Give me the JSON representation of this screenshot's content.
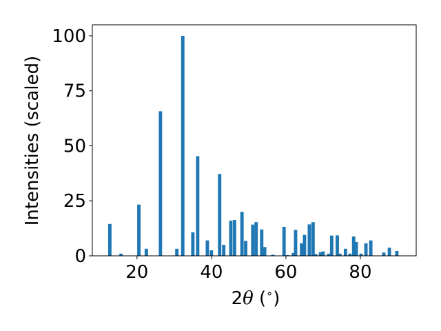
{
  "chart_data": {
    "type": "bar",
    "xlabel_parts": {
      "pre": "2",
      "symbol": "θ",
      "post": " (",
      "degree": "∘",
      "close": ")"
    },
    "ylabel": "Intensities (scaled)",
    "xlim": [
      8,
      95
    ],
    "ylim": [
      0,
      105
    ],
    "xticks": [
      20,
      40,
      60,
      80
    ],
    "yticks": [
      0,
      25,
      50,
      75,
      100
    ],
    "color": "#1f77b4",
    "grid": false,
    "x": [
      12.7,
      15.7,
      20.5,
      22.5,
      26.3,
      30.7,
      32.3,
      35.0,
      36.3,
      38.9,
      40.0,
      42.2,
      43.3,
      45.2,
      46.2,
      48.2,
      49.2,
      51.1,
      52.0,
      53.5,
      54.3,
      56.5,
      59.5,
      60.5,
      62.0,
      62.6,
      64.2,
      65.0,
      66.3,
      67.3,
      68.0,
      69.3,
      70.0,
      71.5,
      72.3,
      73.8,
      74.5,
      76.0,
      77.2,
      78.2,
      78.9,
      80.2,
      81.5,
      82.8,
      86.3,
      87.8,
      89.8
    ],
    "values": [
      14.5,
      1.0,
      23.3,
      3.2,
      65.7,
      3.2,
      100.0,
      10.7,
      45.3,
      7.0,
      2.5,
      37.2,
      5.0,
      16.0,
      16.3,
      20.0,
      6.8,
      14.2,
      15.3,
      12.0,
      4.0,
      0.5,
      13.2,
      0.3,
      1.3,
      11.8,
      5.7,
      9.5,
      14.3,
      15.3,
      0.8,
      1.6,
      2.0,
      1.0,
      9.2,
      9.3,
      1.0,
      3.2,
      1.0,
      8.8,
      6.3,
      1.0,
      5.7,
      7.0,
      1.5,
      3.7,
      2.2
    ]
  }
}
